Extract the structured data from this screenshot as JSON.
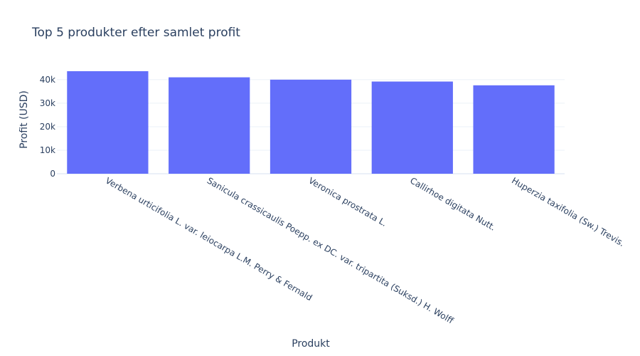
{
  "chart_data": {
    "type": "bar",
    "title": "Top 5 produkter efter samlet profit",
    "xlabel": "Produkt",
    "ylabel": "Profit (USD)",
    "categories": [
      "Verbena urticifolia L. var. leiocarpa L.M. Perry & Fernald",
      "Sanicula crassicaulis Poepp. ex DC. var. tripartita (Suksd.) H. Wolff",
      "Veronica prostrata L.",
      "Callirhoe digitata Nutt.",
      "Huperzia taxifolia (Sw.) Trevis."
    ],
    "values": [
      43600,
      41000,
      40000,
      39200,
      37600
    ],
    "ylim": [
      0,
      43600
    ],
    "yticks": [
      0,
      10000,
      20000,
      30000,
      40000
    ],
    "ytick_labels": [
      "0",
      "10k",
      "20k",
      "30k",
      "40k"
    ],
    "grid": true,
    "bar_color": "#636efa"
  }
}
